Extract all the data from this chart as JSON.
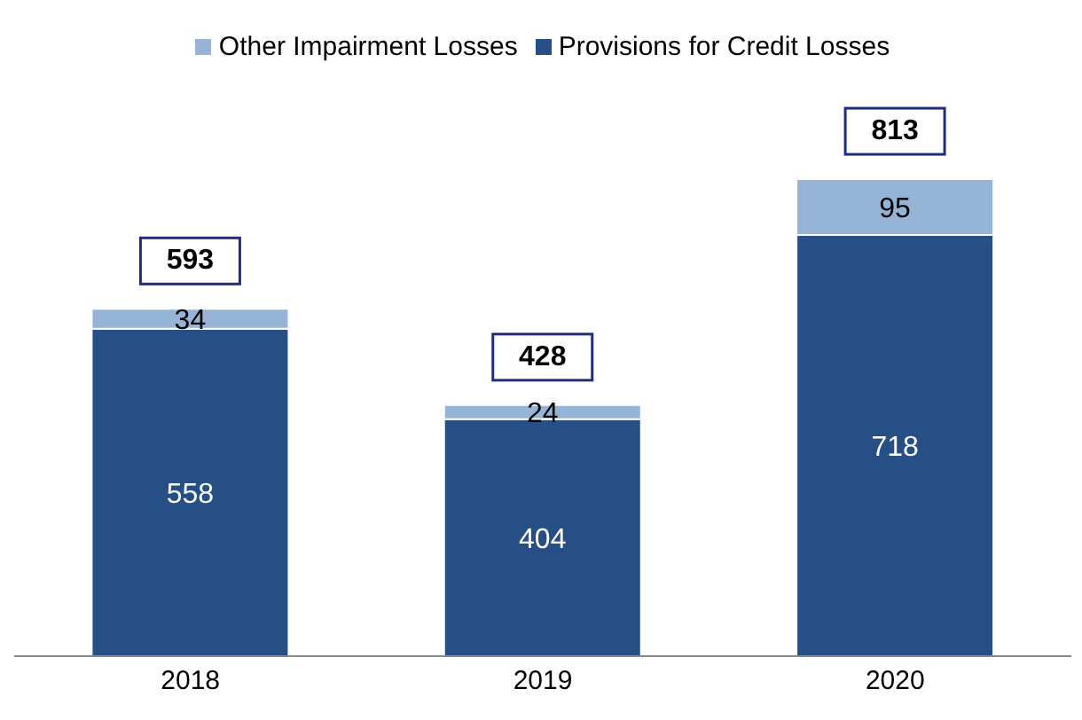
{
  "chart_data": {
    "type": "bar",
    "categories": [
      "2018",
      "2019",
      "2020"
    ],
    "stacked": true,
    "series": [
      {
        "name": "Provisions for Credit Losses",
        "color": "#264f85",
        "values": [
          558,
          404,
          718
        ]
      },
      {
        "name": "Other Impairment Losses",
        "color": "#96b4d6",
        "values": [
          34,
          24,
          95
        ]
      }
    ],
    "data_labels": true,
    "totals": [
      "593",
      "428",
      "813"
    ],
    "legend": "top"
  }
}
